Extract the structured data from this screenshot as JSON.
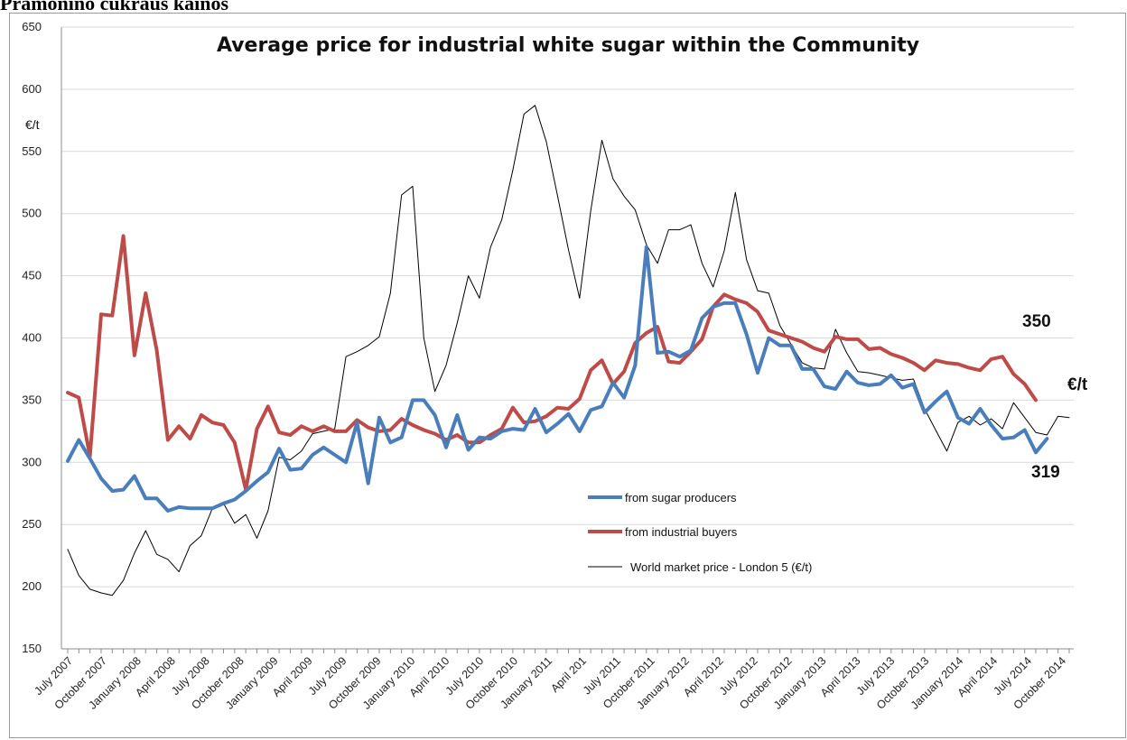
{
  "page": {
    "heading_fragment": "Pramonino cukraus kainos"
  },
  "chart_data": {
    "type": "line",
    "title": "Average price for industrial white sugar within the Community",
    "ylabel": "€/t",
    "xlabel": "",
    "ylim": [
      150,
      650
    ],
    "yticks": [
      150,
      200,
      250,
      300,
      350,
      400,
      450,
      500,
      550,
      600,
      650
    ],
    "grid": true,
    "legend_position": "center-bottom",
    "x_tick_labels": [
      "July 2007",
      "October 2007",
      "January 2008",
      "April 2008",
      "July 2008",
      "October 2008",
      "January 2009",
      "April 2009",
      "July 2009",
      "October 2009",
      "January 2010",
      "April 2010",
      "July 2010",
      "October 2010",
      "January 2011",
      "April 201",
      "July 2011",
      "October 2011",
      "January 2012",
      "April 2012",
      "July 2012",
      "October 2012",
      "January 2013",
      "April 2013",
      "July 2013",
      "October 2013",
      "January 2014",
      "April 2014",
      "July 2014",
      "October 2014"
    ],
    "series": [
      {
        "name": "from sugar producers",
        "color": "#4a7ebb",
        "width": 4,
        "values": [
          301,
          318,
          303,
          287,
          277,
          278,
          289,
          271,
          271,
          261,
          264,
          263,
          263,
          263,
          267,
          270,
          277,
          285,
          292,
          311,
          294,
          295,
          306,
          312,
          306,
          300,
          332,
          283,
          336,
          316,
          320,
          350,
          350,
          338,
          312,
          338,
          310,
          320,
          319,
          325,
          327,
          326,
          343,
          324,
          331,
          339,
          325,
          342,
          345,
          364,
          352,
          378,
          473,
          388,
          389,
          385,
          390,
          416,
          425,
          428,
          428,
          403,
          372,
          400,
          394,
          394,
          375,
          375,
          361,
          359,
          373,
          364,
          362,
          363,
          370,
          360,
          363,
          340,
          349,
          357,
          336,
          331,
          343,
          330,
          319,
          320,
          326,
          308,
          319
        ]
      },
      {
        "name": "from industrial buyers",
        "color": "#be4b48",
        "width": 4,
        "values": [
          356,
          352,
          305,
          419,
          418,
          482,
          386,
          436,
          390,
          318,
          329,
          319,
          338,
          332,
          330,
          316,
          278,
          327,
          345,
          324,
          322,
          329,
          325,
          329,
          325,
          325,
          334,
          328,
          325,
          326,
          335,
          330,
          326,
          323,
          318,
          322,
          316,
          316,
          322,
          327,
          344,
          332,
          333,
          337,
          344,
          343,
          351,
          374,
          382,
          363,
          373,
          396,
          404,
          409,
          381,
          380,
          389,
          399,
          425,
          435,
          431,
          428,
          421,
          406,
          403,
          400,
          397,
          392,
          389,
          401,
          399,
          399,
          391,
          392,
          387,
          384,
          380,
          374,
          382,
          380,
          379,
          376,
          374,
          383,
          385,
          371,
          363,
          350
        ]
      },
      {
        "name": "World market price - London 5 (€/t)",
        "color": "#000000",
        "width": 1,
        "values": [
          230,
          209,
          198,
          195,
          193,
          205,
          227,
          245,
          226,
          222,
          212,
          233,
          241,
          263,
          267,
          251,
          258,
          239,
          261,
          304,
          302,
          309,
          323,
          325,
          327,
          385,
          389,
          394,
          401,
          436,
          515,
          522,
          400,
          357,
          378,
          412,
          450,
          432,
          473,
          495,
          535,
          580,
          587,
          558,
          515,
          471,
          432,
          502,
          559,
          528,
          514,
          503,
          475,
          460,
          487,
          487,
          491,
          460,
          441,
          470,
          517,
          463,
          438,
          436,
          410,
          395,
          380,
          376,
          375,
          407,
          388,
          373,
          372,
          370,
          368,
          366,
          367,
          343,
          326,
          309,
          332,
          337,
          330,
          335,
          327,
          348,
          336,
          324,
          322,
          337,
          336
        ]
      }
    ],
    "annotations": {
      "buyers_end": "350",
      "producers_end": "319",
      "unit_right": "€/t"
    }
  }
}
